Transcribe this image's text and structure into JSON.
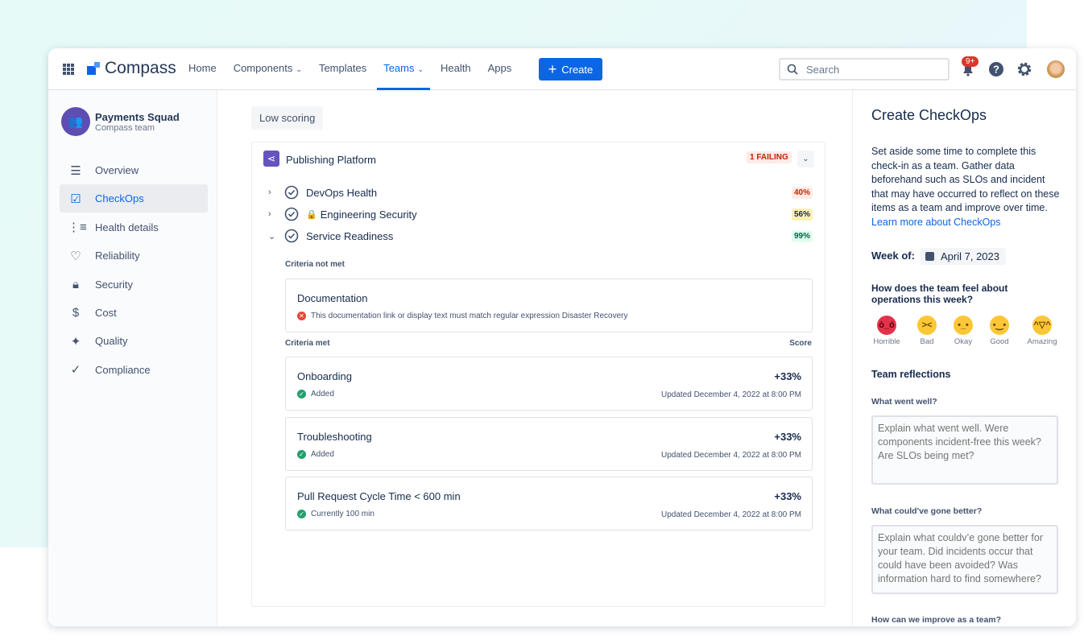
{
  "header": {
    "logo": "Compass",
    "nav": [
      {
        "label": "Home"
      },
      {
        "label": "Components",
        "dropdown": true
      },
      {
        "label": "Templates"
      },
      {
        "label": "Teams",
        "dropdown": true,
        "active": true
      },
      {
        "label": "Health"
      },
      {
        "label": "Apps"
      }
    ],
    "create_label": "Create",
    "search_placeholder": "Search",
    "notification_badge": "9+"
  },
  "sidebar": {
    "team_name": "Payments Squad",
    "team_sub": "Compass team",
    "items": [
      {
        "label": "Overview",
        "icon": "menu-icon"
      },
      {
        "label": "CheckOps",
        "icon": "checkbox-icon",
        "active": true
      },
      {
        "label": "Health details",
        "icon": "list-icon"
      },
      {
        "label": "Reliability",
        "icon": "heart-icon"
      },
      {
        "label": "Security",
        "icon": "lock-icon"
      },
      {
        "label": "Cost",
        "icon": "dollar-icon"
      },
      {
        "label": "Quality",
        "icon": "sparkle-icon"
      },
      {
        "label": "Compliance",
        "icon": "check-circle-icon"
      }
    ]
  },
  "main": {
    "filter_chip": "Low scoring",
    "component": {
      "title": "Publishing Platform",
      "status": "1 FAILING"
    },
    "scorecards": [
      {
        "name": "DevOps Health",
        "score": "40%",
        "color": "#ffebe6",
        "text": "#bf2600"
      },
      {
        "name": "Engineering Security",
        "score": "56%",
        "locked": true,
        "color": "#fff0b3",
        "text": "#172b4d"
      },
      {
        "name": "Service Readiness",
        "score": "99%",
        "expanded": true,
        "color": "#e3fcef",
        "text": "#006644"
      }
    ],
    "criteria_not_met_label": "Criteria not met",
    "not_met": [
      {
        "title": "Documentation",
        "message": "This documentation link or display text must match regular expression Disaster Recovery"
      }
    ],
    "criteria_met_label": "Criteria met",
    "score_label": "Score",
    "met": [
      {
        "title": "Onboarding",
        "status": "Added",
        "score": "+33%",
        "updated": "Updated December 4, 2022 at 8:00 PM"
      },
      {
        "title": "Troubleshooting",
        "status": "Added",
        "score": "+33%",
        "updated": "Updated December 4, 2022 at 8:00 PM"
      },
      {
        "title": "Pull Request Cycle Time < 600 min",
        "status": "Currently 100 min",
        "score": "+33%",
        "updated": "Updated December 4, 2022 at 8:00 PM"
      }
    ]
  },
  "panel": {
    "title": "Create CheckOps",
    "desc": "Set aside some time to complete this check-in as a team. Gather data beforehand such as SLOs and incident that may have occurred to reflect on these items as a team and improve over time. ",
    "learn_more": "Learn more about CheckOps",
    "week_label": "Week of:",
    "week_value": "April 7, 2023",
    "feel_question": "How does the team feel about operations this week?",
    "moods": [
      {
        "label": "Horrible",
        "face": "ò_ó",
        "color": "#e2324a"
      },
      {
        "label": "Bad",
        "face": "&gt;&lt;",
        "color": "#fcc736"
      },
      {
        "label": "Okay",
        "face": "•_•",
        "color": "#fcc736"
      },
      {
        "label": "Good",
        "face": "•‿•",
        "color": "#fcc736"
      },
      {
        "label": "Amazing",
        "face": "^▽^",
        "color": "#fcc736"
      }
    ],
    "reflections_title": "Team reflections",
    "q1": "What went well?",
    "q1_placeholder": "Explain what went well. Were components incident-free this week? Are SLOs being met?",
    "q2": "What could've gone better?",
    "q2_placeholder": "Explain what couldv’e gone better for your team. Did incidents occur that could have been avoided? Was information hard to find somewhere?",
    "q3": "How can we improve as a team?"
  },
  "colors": {
    "brand": "#0c66e4",
    "team": "#5e4db2",
    "component": "#6554c0",
    "success": "#22a06b",
    "danger": "#e34935"
  }
}
